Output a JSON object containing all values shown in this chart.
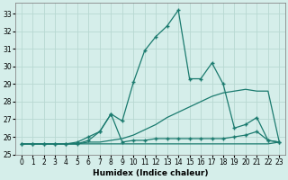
{
  "xlabel": "Humidex (Indice chaleur)",
  "ylabel": "",
  "xlim": [
    -0.5,
    23.5
  ],
  "ylim": [
    25.0,
    33.6
  ],
  "yticks": [
    25,
    26,
    27,
    28,
    29,
    30,
    31,
    32,
    33
  ],
  "xticks": [
    0,
    1,
    2,
    3,
    4,
    5,
    6,
    7,
    8,
    9,
    10,
    11,
    12,
    13,
    14,
    15,
    16,
    17,
    18,
    19,
    20,
    21,
    22,
    23
  ],
  "background_color": "#d5eeea",
  "grid_color": "#b8d8d2",
  "line_color": "#1a7a6e",
  "series": [
    {
      "x": [
        0,
        1,
        2,
        3,
        4,
        5,
        6,
        7,
        8,
        9,
        10,
        11,
        12,
        13,
        14,
        15,
        16,
        17,
        18,
        19,
        20,
        21,
        22,
        23
      ],
      "y": [
        25.6,
        25.6,
        25.6,
        25.6,
        25.6,
        25.6,
        25.6,
        25.6,
        25.6,
        25.6,
        25.6,
        25.6,
        25.6,
        25.6,
        25.6,
        25.6,
        25.6,
        25.6,
        25.6,
        25.6,
        25.6,
        25.6,
        25.6,
        25.7
      ],
      "marker": null,
      "lw": 0.9
    },
    {
      "x": [
        0,
        1,
        2,
        3,
        4,
        5,
        6,
        7,
        8,
        9,
        10,
        11,
        12,
        13,
        14,
        15,
        16,
        17,
        18,
        19,
        20,
        21,
        22,
        23
      ],
      "y": [
        25.6,
        25.6,
        25.6,
        25.6,
        25.6,
        25.6,
        25.7,
        25.7,
        25.8,
        25.9,
        26.1,
        26.4,
        26.7,
        27.1,
        27.4,
        27.7,
        28.0,
        28.3,
        28.5,
        28.6,
        28.7,
        28.6,
        28.6,
        25.7
      ],
      "marker": null,
      "lw": 0.9
    },
    {
      "x": [
        0,
        1,
        2,
        3,
        4,
        5,
        6,
        7,
        8,
        9,
        10,
        11,
        12,
        13,
        14,
        15,
        16,
        17,
        18,
        19,
        20,
        21,
        22,
        23
      ],
      "y": [
        25.6,
        25.6,
        25.6,
        25.6,
        25.6,
        25.7,
        26.0,
        26.3,
        27.3,
        25.7,
        25.8,
        25.8,
        25.9,
        25.9,
        25.9,
        25.9,
        25.9,
        25.9,
        25.9,
        26.0,
        26.1,
        26.3,
        25.8,
        25.7
      ],
      "marker": "+",
      "lw": 0.9
    },
    {
      "x": [
        0,
        1,
        2,
        3,
        4,
        5,
        6,
        7,
        8,
        9,
        10,
        11,
        12,
        13,
        14,
        15,
        16,
        17,
        18,
        19,
        20,
        21,
        22,
        23
      ],
      "y": [
        25.6,
        25.6,
        25.6,
        25.6,
        25.6,
        25.6,
        25.8,
        26.3,
        27.3,
        26.9,
        29.1,
        30.9,
        31.7,
        32.3,
        33.2,
        29.3,
        29.3,
        30.2,
        29.0,
        26.5,
        26.7,
        27.1,
        25.8,
        25.7
      ],
      "marker": "+",
      "lw": 0.9
    }
  ]
}
